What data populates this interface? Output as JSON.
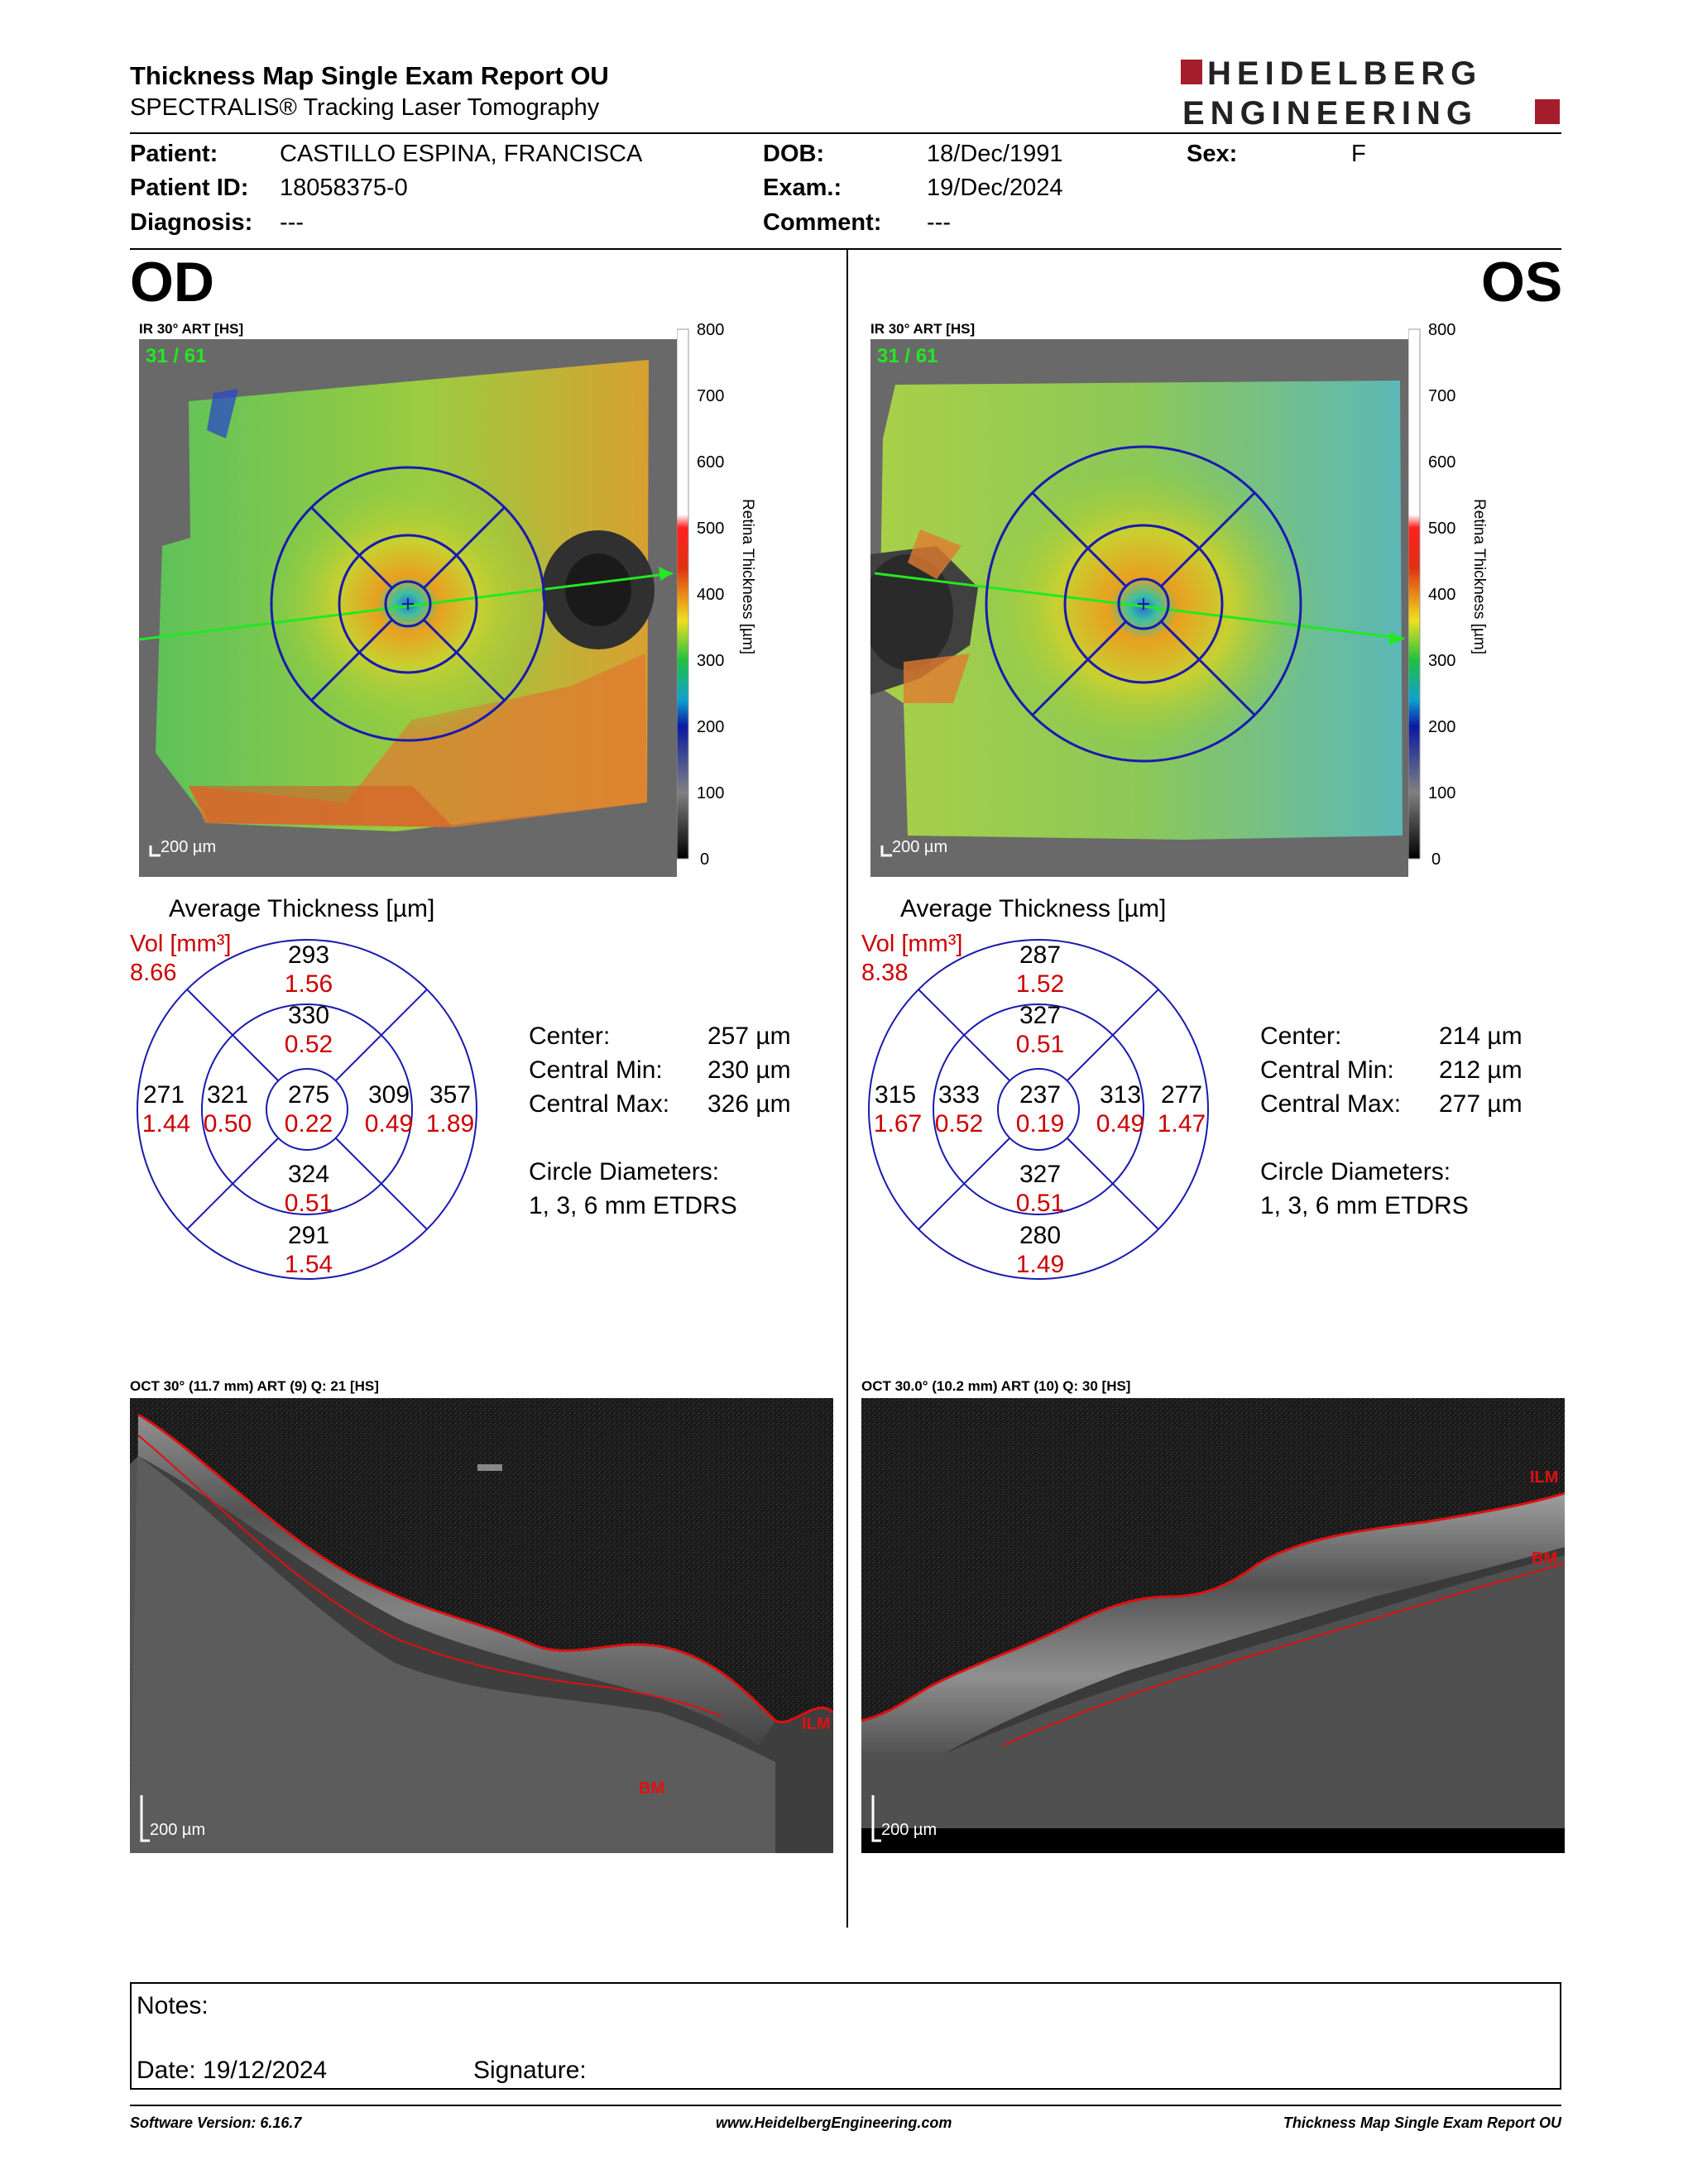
{
  "report": {
    "title": "Thickness Map Single Exam Report OU",
    "subtitle": "SPECTRALIS® Tracking Laser Tomography",
    "logo": {
      "line1": "HEIDELBERG",
      "line2": "ENGINEERING"
    }
  },
  "patient": {
    "patient_label": "Patient:",
    "patient_value": "CASTILLO ESPINA, FRANCISCA",
    "id_label": "Patient ID:",
    "id_value": "18058375-0",
    "diagnosis_label": "Diagnosis:",
    "diagnosis_value": "---",
    "dob_label": "DOB:",
    "dob_value": "18/Dec/1991",
    "exam_label": "Exam.:",
    "exam_value": "19/Dec/2024",
    "comment_label": "Comment:",
    "comment_value": "---",
    "sex_label": "Sex:",
    "sex_value": "F"
  },
  "colorbar": {
    "ticks": [
      "800",
      "700",
      "600",
      "500",
      "400",
      "300",
      "200",
      "100",
      "0"
    ],
    "label": "Retina Thickness [µm]"
  },
  "od": {
    "eye": "OD",
    "map_title": "IR 30° ART [HS]",
    "frame_count": "31 / 61",
    "scale": "200 µm",
    "avg_title": "Average Thickness [µm]",
    "vol_label": "Vol [mm³]",
    "total_vol": "8.66",
    "sectors": {
      "outer_superior": {
        "thickness": "293",
        "volume": "1.56"
      },
      "inner_superior": {
        "thickness": "330",
        "volume": "0.52"
      },
      "outer_temporal": {
        "thickness": "271",
        "volume": "1.44"
      },
      "inner_temporal": {
        "thickness": "321",
        "volume": "0.50"
      },
      "center": {
        "thickness": "275",
        "volume": "0.22"
      },
      "inner_nasal": {
        "thickness": "309",
        "volume": "0.49"
      },
      "outer_nasal": {
        "thickness": "357",
        "volume": "1.89"
      },
      "inner_inferior": {
        "thickness": "324",
        "volume": "0.51"
      },
      "outer_inferior": {
        "thickness": "291",
        "volume": "1.54"
      }
    },
    "stats": {
      "center_label": "Center:",
      "center_value": "257 µm",
      "min_label": "Central Min:",
      "min_value": "230 µm",
      "max_label": "Central Max:",
      "max_value": "326 µm",
      "circles_label": "Circle Diameters:",
      "circles_value": "1, 3, 6 mm ETDRS"
    },
    "oct_title": "OCT 30° (11.7 mm) ART (9) Q: 21 [HS]",
    "oct_scale": "200 µm",
    "ilm_label": "ILM",
    "bm_label": "BM"
  },
  "os": {
    "eye": "OS",
    "map_title": "IR 30° ART [HS]",
    "frame_count": "31 / 61",
    "scale": "200 µm",
    "avg_title": "Average Thickness [µm]",
    "vol_label": "Vol [mm³]",
    "total_vol": "8.38",
    "sectors": {
      "outer_superior": {
        "thickness": "287",
        "volume": "1.52"
      },
      "inner_superior": {
        "thickness": "327",
        "volume": "0.51"
      },
      "outer_temporal": {
        "thickness": "315",
        "volume": "1.67"
      },
      "inner_temporal": {
        "thickness": "333",
        "volume": "0.52"
      },
      "center": {
        "thickness": "237",
        "volume": "0.19"
      },
      "inner_nasal": {
        "thickness": "313",
        "volume": "0.49"
      },
      "outer_nasal": {
        "thickness": "277",
        "volume": "1.47"
      },
      "inner_inferior": {
        "thickness": "327",
        "volume": "0.51"
      },
      "outer_inferior": {
        "thickness": "280",
        "volume": "1.49"
      }
    },
    "stats": {
      "center_label": "Center:",
      "center_value": "214 µm",
      "min_label": "Central Min:",
      "min_value": "212 µm",
      "max_label": "Central Max:",
      "max_value": "277 µm",
      "circles_label": "Circle Diameters:",
      "circles_value": "1, 3, 6 mm ETDRS"
    },
    "oct_title": "OCT 30.0° (10.2 mm) ART (10) Q: 30 [HS]",
    "oct_scale": "200 µm",
    "ilm_label": "ILM",
    "bm_label": "BM"
  },
  "notes": {
    "notes_label": "Notes:",
    "date_label": "Date: 19/12/2024",
    "signature_label": "Signature:"
  },
  "footer": {
    "software": "Software Version: 6.16.7",
    "website": "www.HeidelbergEngineering.com",
    "report_name": "Thickness Map Single Exam Report OU"
  }
}
